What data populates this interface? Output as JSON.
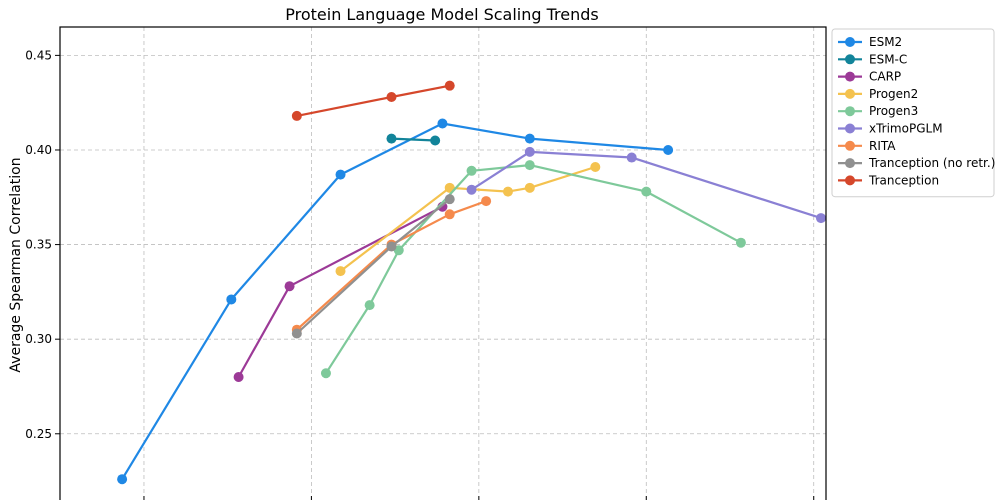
{
  "chart_data": {
    "type": "line",
    "title": "Protein Language Model Scaling Trends",
    "xlabel": "",
    "ylabel": "Average Spearman Correlation",
    "xlim": [
      0.0,
      10.0
    ],
    "ylim": [
      0.215,
      0.465
    ],
    "yticks": [
      0.25,
      0.3,
      0.35,
      0.4,
      0.45
    ],
    "ytick_labels": [
      "0.25",
      "0.30",
      "0.35",
      "0.40",
      "0.45"
    ],
    "xgrid": [
      0.7,
      3.0,
      5.3,
      7.6,
      9.9
    ],
    "grid": true,
    "legend_position": "outside-right",
    "series": [
      {
        "name": "ESM2",
        "color": "#1f88e5",
        "points": [
          [
            0.4,
            0.226
          ],
          [
            1.9,
            0.321
          ],
          [
            3.4,
            0.387
          ],
          [
            4.8,
            0.414
          ],
          [
            6.0,
            0.406
          ],
          [
            7.9,
            0.4
          ]
        ]
      },
      {
        "name": "ESM-C",
        "color": "#12849a",
        "points": [
          [
            4.1,
            0.406
          ],
          [
            4.7,
            0.405
          ]
        ]
      },
      {
        "name": "CARP",
        "color": "#9c3a97",
        "points": [
          [
            2.0,
            0.28
          ],
          [
            2.7,
            0.328
          ],
          [
            4.8,
            0.37
          ]
        ]
      },
      {
        "name": "Progen2",
        "color": "#f4c24f",
        "points": [
          [
            3.4,
            0.336
          ],
          [
            4.9,
            0.38
          ],
          [
            5.7,
            0.378
          ],
          [
            6.0,
            0.38
          ],
          [
            6.9,
            0.391
          ]
        ]
      },
      {
        "name": "Progen3",
        "color": "#7ec99a",
        "points": [
          [
            3.2,
            0.282
          ],
          [
            3.8,
            0.318
          ],
          [
            4.2,
            0.347
          ],
          [
            5.2,
            0.389
          ],
          [
            6.0,
            0.392
          ],
          [
            7.6,
            0.378
          ],
          [
            8.9,
            0.351
          ]
        ]
      },
      {
        "name": "xTrimoPGLM",
        "color": "#8a80d4",
        "points": [
          [
            5.2,
            0.379
          ],
          [
            6.0,
            0.399
          ],
          [
            7.4,
            0.396
          ],
          [
            10.0,
            0.364
          ]
        ]
      },
      {
        "name": "RITA",
        "color": "#f58a4c",
        "points": [
          [
            2.8,
            0.305
          ],
          [
            4.1,
            0.35
          ],
          [
            4.9,
            0.366
          ],
          [
            5.4,
            0.373
          ]
        ]
      },
      {
        "name": "Tranception (no retr.)",
        "color": "#909090",
        "points": [
          [
            2.8,
            0.303
          ],
          [
            4.1,
            0.349
          ],
          [
            4.9,
            0.374
          ]
        ]
      },
      {
        "name": "Tranception",
        "color": "#d5472b",
        "points": [
          [
            2.8,
            0.418
          ],
          [
            4.1,
            0.428
          ],
          [
            4.9,
            0.434
          ]
        ]
      }
    ]
  }
}
